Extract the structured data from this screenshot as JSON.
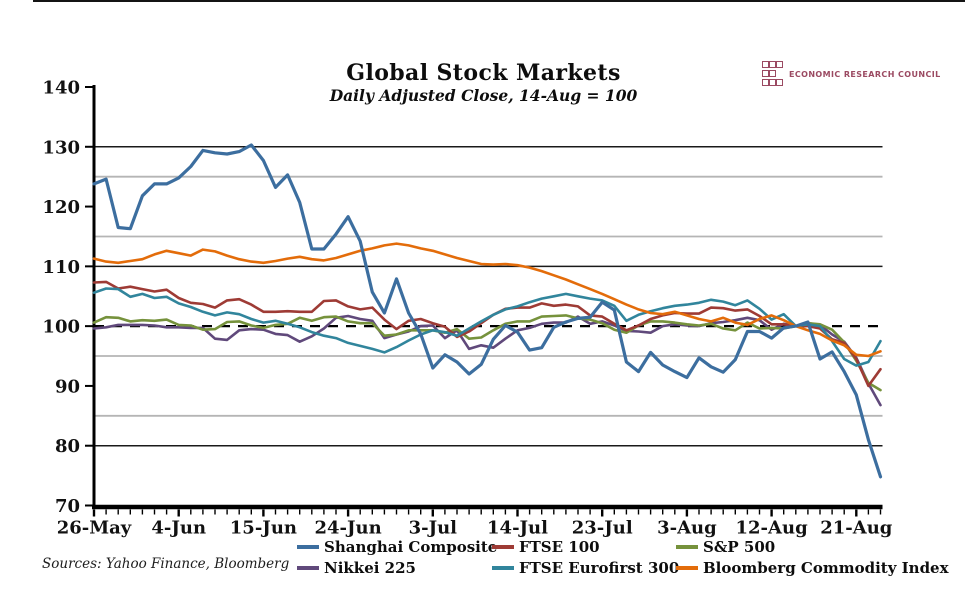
{
  "header": {
    "title": "Global Stock Markets",
    "subtitle": "Daily Adjusted Close, 14-Aug = 100"
  },
  "logo": {
    "text": "ECONOMIC RESEARCH COUNCIL",
    "color": "#9b4a62"
  },
  "footer": {
    "sources": "Sources: Yahoo Finance, Bloomberg"
  },
  "chart_data": {
    "type": "line",
    "title": "Global Stock Markets",
    "subtitle": "Daily Adjusted Close, 14-Aug = 100",
    "ylim": [
      70,
      140
    ],
    "y_ticks": [
      70,
      80,
      90,
      100,
      110,
      120,
      130,
      140
    ],
    "gridlines": {
      "gray": [
        125,
        115,
        95,
        85
      ],
      "black": [
        130,
        110,
        80
      ],
      "dashed_black": [
        100
      ]
    },
    "x_tick_labels": [
      "26-May",
      "4-Jun",
      "15-Jun",
      "24-Jun",
      "3-Jul",
      "14-Jul",
      "23-Jul",
      "3-Aug",
      "12-Aug",
      "21-Aug"
    ],
    "x_tick_indices": [
      0,
      7,
      14,
      21,
      28,
      35,
      42,
      49,
      56,
      63
    ],
    "legend_position": "bottom",
    "categories": [
      "26-May",
      "27-May",
      "28-May",
      "29-May",
      "1-Jun",
      "2-Jun",
      "3-Jun",
      "4-Jun",
      "5-Jun",
      "8-Jun",
      "9-Jun",
      "10-Jun",
      "11-Jun",
      "12-Jun",
      "15-Jun",
      "16-Jun",
      "17-Jun",
      "18-Jun",
      "19-Jun",
      "22-Jun",
      "23-Jun",
      "24-Jun",
      "25-Jun",
      "26-Jun",
      "29-Jun",
      "30-Jun",
      "1-Jul",
      "2-Jul",
      "3-Jul",
      "6-Jul",
      "7-Jul",
      "8-Jul",
      "9-Jul",
      "10-Jul",
      "13-Jul",
      "14-Jul",
      "15-Jul",
      "16-Jul",
      "17-Jul",
      "20-Jul",
      "21-Jul",
      "22-Jul",
      "23-Jul",
      "24-Jul",
      "27-Jul",
      "28-Jul",
      "29-Jul",
      "30-Jul",
      "31-Jul",
      "3-Aug",
      "4-Aug",
      "5-Aug",
      "6-Aug",
      "7-Aug",
      "10-Aug",
      "11-Aug",
      "12-Aug",
      "13-Aug",
      "14-Aug",
      "17-Aug",
      "18-Aug",
      "19-Aug",
      "20-Aug",
      "21-Aug",
      "24-Aug",
      "25-Aug"
    ],
    "series": [
      {
        "name": "Shanghai Composite",
        "color": "#3c6e9f",
        "width": 3.2,
        "values": [
          123.8,
          124.6,
          116.5,
          116.3,
          121.8,
          123.8,
          123.8,
          124.8,
          126.7,
          129.4,
          129.0,
          128.8,
          129.2,
          130.3,
          127.7,
          123.2,
          125.3,
          120.7,
          112.9,
          112.9,
          115.4,
          118.3,
          114.2,
          105.7,
          102.2,
          107.9,
          102.2,
          98.7,
          93.0,
          95.2,
          94.0,
          92.0,
          93.6,
          97.8,
          100.1,
          99.0,
          96.0,
          96.4,
          99.8,
          100.7,
          101.3,
          101.5,
          104.0,
          102.7,
          94.0,
          92.4,
          95.6,
          93.5,
          92.4,
          91.4,
          94.7,
          93.2,
          92.3,
          94.4,
          99.1,
          99.1,
          98.0,
          99.7,
          100.0,
          100.7,
          94.5,
          95.7,
          92.4,
          88.5,
          81.0,
          74.8
        ]
      },
      {
        "name": "FTSE 100",
        "color": "#9e3b35",
        "width": 2.6,
        "values": [
          107.3,
          107.4,
          106.3,
          106.6,
          106.2,
          105.8,
          106.1,
          104.7,
          103.9,
          103.7,
          103.1,
          104.3,
          104.5,
          103.6,
          102.4,
          102.4,
          102.5,
          102.4,
          102.4,
          104.2,
          104.3,
          103.3,
          102.8,
          103.1,
          101.1,
          99.5,
          100.9,
          101.2,
          100.5,
          99.9,
          98.2,
          99.1,
          100.5,
          101.9,
          102.9,
          103.1,
          103.1,
          103.8,
          103.4,
          103.6,
          103.3,
          101.8,
          101.6,
          100.4,
          99.3,
          100.1,
          101.2,
          101.8,
          102.2,
          102.1,
          102.1,
          103.1,
          103.0,
          102.6,
          102.8,
          101.7,
          100.3,
          100.3,
          100.0,
          100.0,
          99.6,
          97.8,
          97.2,
          94.5,
          90.0,
          92.8
        ]
      },
      {
        "name": "S&P 500",
        "color": "#76923c",
        "width": 2.6,
        "values": [
          100.6,
          101.5,
          101.4,
          100.8,
          101.0,
          100.9,
          101.1,
          100.2,
          100.1,
          99.4,
          99.5,
          100.7,
          100.8,
          100.1,
          99.7,
          100.2,
          100.4,
          101.4,
          100.9,
          101.5,
          101.6,
          100.8,
          100.5,
          100.5,
          98.4,
          98.6,
          99.3,
          99.3,
          99.3,
          98.9,
          99.5,
          97.9,
          98.1,
          99.3,
          100.4,
          100.8,
          100.8,
          101.6,
          101.7,
          101.8,
          101.3,
          101.1,
          100.5,
          99.4,
          98.9,
          100.1,
          100.8,
          100.8,
          100.6,
          100.3,
          100.1,
          100.4,
          99.6,
          99.3,
          100.6,
          99.6,
          99.7,
          99.6,
          100.0,
          100.5,
          100.3,
          99.4,
          97.3,
          94.2,
          90.5,
          89.3
        ]
      },
      {
        "name": "Nikkei 225",
        "color": "#60497b",
        "width": 2.6,
        "values": [
          99.6,
          99.8,
          100.2,
          100.2,
          100.2,
          100.1,
          99.8,
          99.8,
          99.7,
          99.7,
          97.9,
          97.7,
          99.3,
          99.5,
          99.4,
          98.7,
          98.5,
          97.4,
          98.3,
          99.6,
          101.4,
          101.7,
          101.2,
          100.9,
          98.0,
          98.6,
          99.1,
          100.0,
          100.1,
          98.0,
          99.3,
          96.2,
          96.8,
          96.4,
          97.9,
          99.3,
          99.7,
          100.4,
          100.6,
          100.6,
          101.6,
          100.4,
          100.8,
          100.1,
          99.2,
          99.1,
          98.9,
          100.0,
          100.3,
          100.1,
          100.0,
          100.5,
          100.7,
          101.0,
          101.4,
          101.0,
          99.4,
          100.4,
          100.0,
          100.5,
          100.2,
          98.6,
          97.4,
          94.7,
          90.4,
          86.8
        ]
      },
      {
        "name": "FTSE Eurofirst 300",
        "color": "#31859c",
        "width": 2.6,
        "values": [
          105.6,
          106.3,
          106.2,
          104.9,
          105.4,
          104.7,
          104.9,
          103.8,
          103.2,
          102.4,
          101.8,
          102.3,
          102.0,
          101.2,
          100.6,
          100.9,
          100.4,
          99.8,
          99.0,
          98.4,
          98.0,
          97.2,
          96.7,
          96.2,
          95.6,
          96.5,
          97.6,
          98.6,
          99.3,
          99.0,
          98.4,
          99.6,
          100.8,
          101.9,
          102.8,
          103.3,
          104.0,
          104.6,
          105.0,
          105.4,
          105.0,
          104.6,
          104.3,
          103.4,
          100.9,
          101.9,
          102.5,
          103.0,
          103.4,
          103.6,
          103.9,
          104.4,
          104.1,
          103.5,
          104.3,
          102.9,
          101.1,
          102.0,
          100.0,
          100.3,
          100.0,
          97.5,
          94.5,
          93.4,
          94.0,
          97.5
        ]
      },
      {
        "name": "Bloomberg Commodity Index",
        "color": "#e36c0a",
        "width": 2.6,
        "values": [
          111.3,
          110.8,
          110.6,
          110.9,
          111.2,
          112.0,
          112.6,
          112.2,
          111.8,
          112.8,
          112.5,
          111.8,
          111.2,
          110.8,
          110.6,
          110.9,
          111.3,
          111.6,
          111.2,
          111.0,
          111.4,
          112.0,
          112.6,
          113.0,
          113.5,
          113.8,
          113.5,
          113.0,
          112.6,
          112.0,
          111.4,
          110.9,
          110.4,
          110.3,
          110.4,
          110.2,
          109.8,
          109.2,
          108.5,
          107.8,
          107.0,
          106.2,
          105.4,
          104.5,
          103.6,
          102.8,
          102.2,
          102.0,
          102.4,
          101.8,
          101.2,
          100.8,
          101.4,
          100.6,
          100.2,
          101.2,
          101.8,
          101.0,
          100.0,
          99.3,
          98.7,
          97.6,
          96.8,
          95.2,
          95.0,
          95.8
        ]
      }
    ]
  }
}
